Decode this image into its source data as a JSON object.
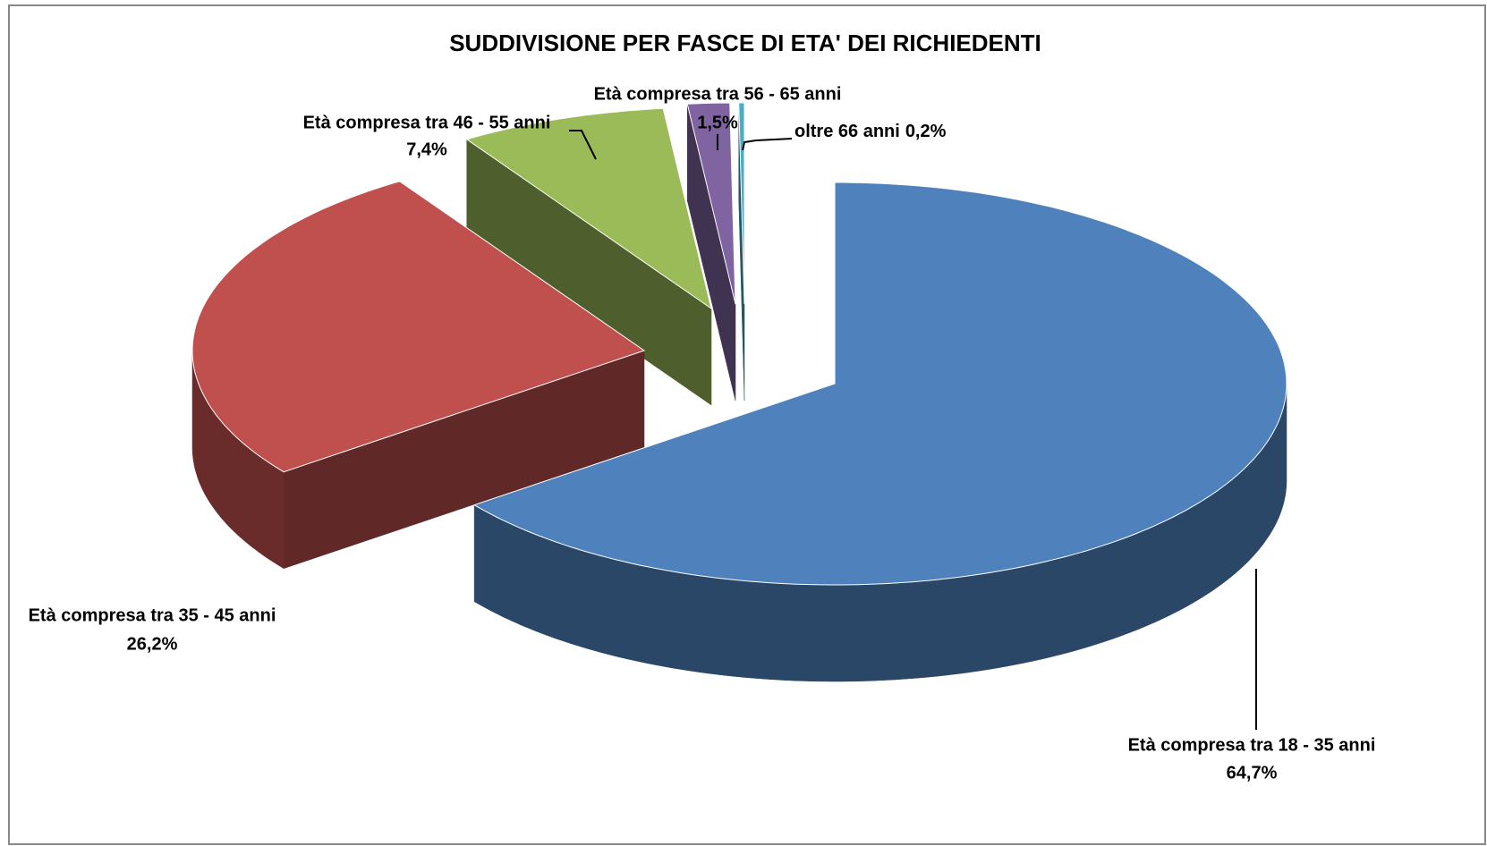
{
  "chart_data": {
    "type": "pie3d",
    "title": "SUDDIVISIONE PER FASCE DI ETA' DEI RICHIEDENTI",
    "categories": [
      "Età compresa tra 18 - 35 anni",
      "Età compresa tra 35 - 45 anni",
      "Età compresa tra 46 - 55 anni",
      "Età compresa tra 56 - 65 anni",
      "oltre 66 anni"
    ],
    "values": [
      64.7,
      26.2,
      7.4,
      1.5,
      0.2
    ],
    "value_labels": [
      "64,7%",
      "26,2%",
      "7,4%",
      "1,5%",
      "0,2%"
    ],
    "colors": [
      "#4f81bd",
      "#c0504d",
      "#9bbb59",
      "#8064a2",
      "#4bacc6"
    ]
  }
}
